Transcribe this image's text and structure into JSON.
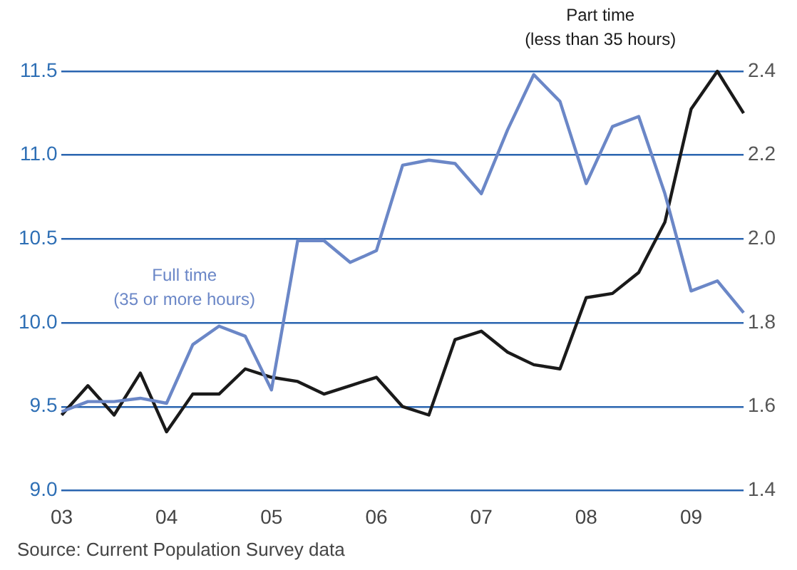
{
  "chart_data": {
    "type": "line",
    "categories": [
      "03",
      null,
      null,
      null,
      "04",
      null,
      null,
      null,
      "05",
      null,
      null,
      null,
      "06",
      null,
      null,
      null,
      "07",
      null,
      null,
      null,
      "08",
      null,
      null,
      null,
      "09",
      null,
      null
    ],
    "series": [
      {
        "name": "Full time\n(35 or more hours)",
        "color": "#6b87c7",
        "values": [
          9.47,
          9.53,
          9.53,
          9.55,
          9.52,
          9.87,
          9.98,
          9.92,
          9.6,
          10.49,
          10.49,
          10.36,
          10.43,
          10.94,
          10.97,
          10.95,
          10.77,
          11.15,
          11.48,
          11.32,
          10.83,
          11.17,
          11.23,
          10.77,
          10.19,
          10.25,
          10.06
        ]
      },
      {
        "name": "Part time\n(less than 35 hours)",
        "color": "#1a1a1a",
        "axis": "y2",
        "values": [
          1.58,
          1.65,
          1.58,
          1.68,
          1.54,
          1.63,
          1.63,
          1.69,
          1.67,
          1.66,
          1.63,
          1.65,
          1.67,
          1.6,
          1.58,
          1.76,
          1.78,
          1.73,
          1.7,
          1.69,
          1.86,
          1.87,
          1.92,
          2.04,
          2.31,
          2.4,
          2.3
        ]
      }
    ],
    "ylim": [
      9.0,
      11.5
    ],
    "yticks": [
      {
        "value": 9,
        "label": "9.0"
      },
      9.5,
      {
        "value": 10,
        "label": "10.0"
      },
      10.5,
      {
        "value": 11,
        "label": "11.0"
      },
      11.5
    ],
    "y2lim": [
      1.4,
      2.4
    ],
    "y2ticks": [
      1.4,
      1.6,
      1.8,
      {
        "value": 2,
        "label": "2.0"
      },
      2.2,
      2.4
    ],
    "grid": "y",
    "legend": false,
    "marker": "none",
    "line_style": "solid",
    "annotations": [
      "Source: Current Population Survey data"
    ]
  }
}
